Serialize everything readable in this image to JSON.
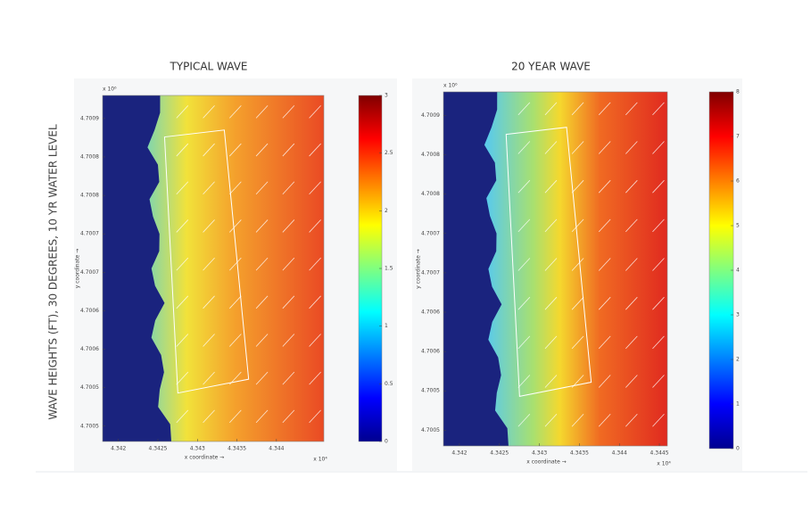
{
  "side_label": "WAVE HEIGHTS (FT), 30 DEGREES, 10 YR WATER LEVEL",
  "chart_data": [
    {
      "type": "heatmap",
      "title": "TYPICAL WAVE",
      "xlabel": "x coordinate →",
      "ylabel": "y coordinate →",
      "x_multiplier": "x 10⁴",
      "y_multiplier": "x 10⁶",
      "xlim": [
        4.3418,
        4.3446
      ],
      "xticks": [
        4.342,
        4.3425,
        4.343,
        4.3435,
        4.344
      ],
      "ylim": [
        4.70048,
        4.70093
      ],
      "yticks": [
        4.7009,
        {
          "value": 4.70085,
          "label": "4.7008"
        },
        4.7008,
        {
          "value": 4.70075,
          "label": "4.7007"
        },
        4.7007,
        {
          "value": 4.70065,
          "label": "4.7006"
        },
        4.7006,
        {
          "value": 4.70055,
          "label": "4.7005"
        },
        4.7005
      ],
      "clim": [
        0,
        3
      ],
      "cticks": [
        0,
        0.5,
        1,
        1.5,
        2,
        2.5,
        3
      ]
    },
    {
      "type": "heatmap",
      "title": "20 YEAR WAVE",
      "xlabel": "x coordinate →",
      "ylabel": "y coordinate →",
      "x_multiplier": "x 10⁴",
      "y_multiplier": "x 10⁶",
      "xlim": [
        4.3418,
        4.3446
      ],
      "xticks": [
        4.342,
        4.3425,
        4.343,
        4.3435,
        4.344,
        4.3445
      ],
      "ylim": [
        4.70048,
        4.70093
      ],
      "yticks": [
        4.7009,
        {
          "value": 4.70085,
          "label": "4.7008"
        },
        4.7008,
        {
          "value": 4.70075,
          "label": "4.7007"
        },
        4.7007,
        {
          "value": 4.70065,
          "label": "4.7006"
        },
        4.7006,
        {
          "value": 4.70055,
          "label": "4.7005"
        },
        4.7005
      ],
      "clim": [
        0,
        8
      ],
      "cticks": [
        0,
        1,
        2,
        3,
        4,
        5,
        6,
        7,
        8
      ]
    }
  ]
}
